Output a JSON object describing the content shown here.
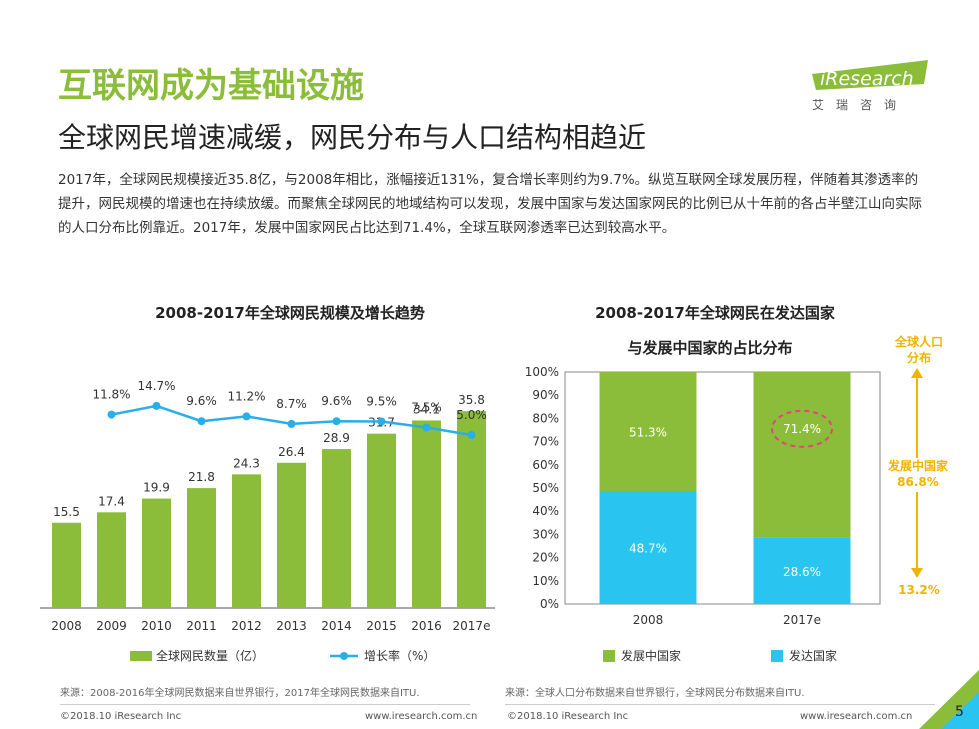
{
  "header": {
    "title": "互联网成为基础设施",
    "subtitle": "全球网民增速减缓，网民分布与人口结构相趋近",
    "logo_text": "iResearch",
    "logo_sub": "艾瑞咨询"
  },
  "body_text": "2017年，全球网民规模接近35.8亿，与2008年相比，涨幅接近131%，复合增长率则约为9.7%。纵览互联网全球发展历程，伴随着其渗透率的提升，网民规模的增速也在持续放缓。而聚焦全球网民的地域结构可以发现，发展中国家与发达国家网民的比例已从十年前的各占半壁江山向实际的人口分布比例靠近。2017年，发展中国家网民占比达到71.4%，全球互联网渗透率已达到较高水平。",
  "chart_data": [
    {
      "type": "bar",
      "title": "2008-2017年全球网民规模及增长趋势",
      "categories": [
        "2008",
        "2009",
        "2010",
        "2011",
        "2012",
        "2013",
        "2014",
        "2015",
        "2016",
        "2017e"
      ],
      "series": [
        {
          "name": "全球网民数量（亿）",
          "type": "bar",
          "color": "#8cbd3a",
          "values": [
            15.5,
            17.4,
            19.9,
            21.8,
            24.3,
            26.4,
            28.9,
            31.7,
            34.1,
            35.8
          ]
        },
        {
          "name": "增长率（%）",
          "type": "line",
          "color": "#29aee6",
          "values": [
            null,
            11.8,
            14.7,
            9.6,
            11.2,
            8.7,
            9.6,
            9.5,
            7.5,
            5.0
          ],
          "labels": [
            "",
            "11.8%",
            "14.7%",
            "9.6%",
            "11.2%",
            "8.7%",
            "9.6%",
            "9.5%",
            "7.5%",
            "5.0%"
          ]
        }
      ],
      "legend_position": "bottom"
    },
    {
      "type": "bar",
      "stacked": true,
      "title": "2008-2017年全球网民在发达国家与发展中国家的占比分布",
      "title_line1": "2008-2017年全球网民在发达国家",
      "title_line2": "与发展中国家的占比分布",
      "categories": [
        "2008",
        "2017e"
      ],
      "series": [
        {
          "name": "发展中国家",
          "color": "#8cbd3a",
          "values": [
            51.3,
            71.4
          ],
          "labels": [
            "51.3%",
            "71.4%"
          ]
        },
        {
          "name": "发达国家",
          "color": "#29c5f0",
          "values": [
            48.7,
            28.6
          ],
          "labels": [
            "48.7%",
            "28.6%"
          ]
        }
      ],
      "ylim": [
        0,
        100
      ],
      "yticks": [
        "0%",
        "10%",
        "20%",
        "30%",
        "40%",
        "50%",
        "60%",
        "70%",
        "80%",
        "90%",
        "100%"
      ],
      "grid": false,
      "legend_position": "bottom"
    }
  ],
  "side_panel": {
    "title_line1": "全球人口",
    "title_line2": "分布",
    "developing_label": "发展中国家",
    "developing_value": "86.8%",
    "developed_value": "13.2%",
    "accent": "#f0b400"
  },
  "sources": {
    "left": "来源：2008-2016年全球网民数据来自世界银行，2017年全球网民数据来自ITU.",
    "right": "来源：全球人口分布数据来自世界银行，全球网民分布数据来自ITU."
  },
  "footer": {
    "copyright": "©2018.10 iResearch Inc",
    "url": "www.iresearch.com.cn",
    "page": "5"
  }
}
